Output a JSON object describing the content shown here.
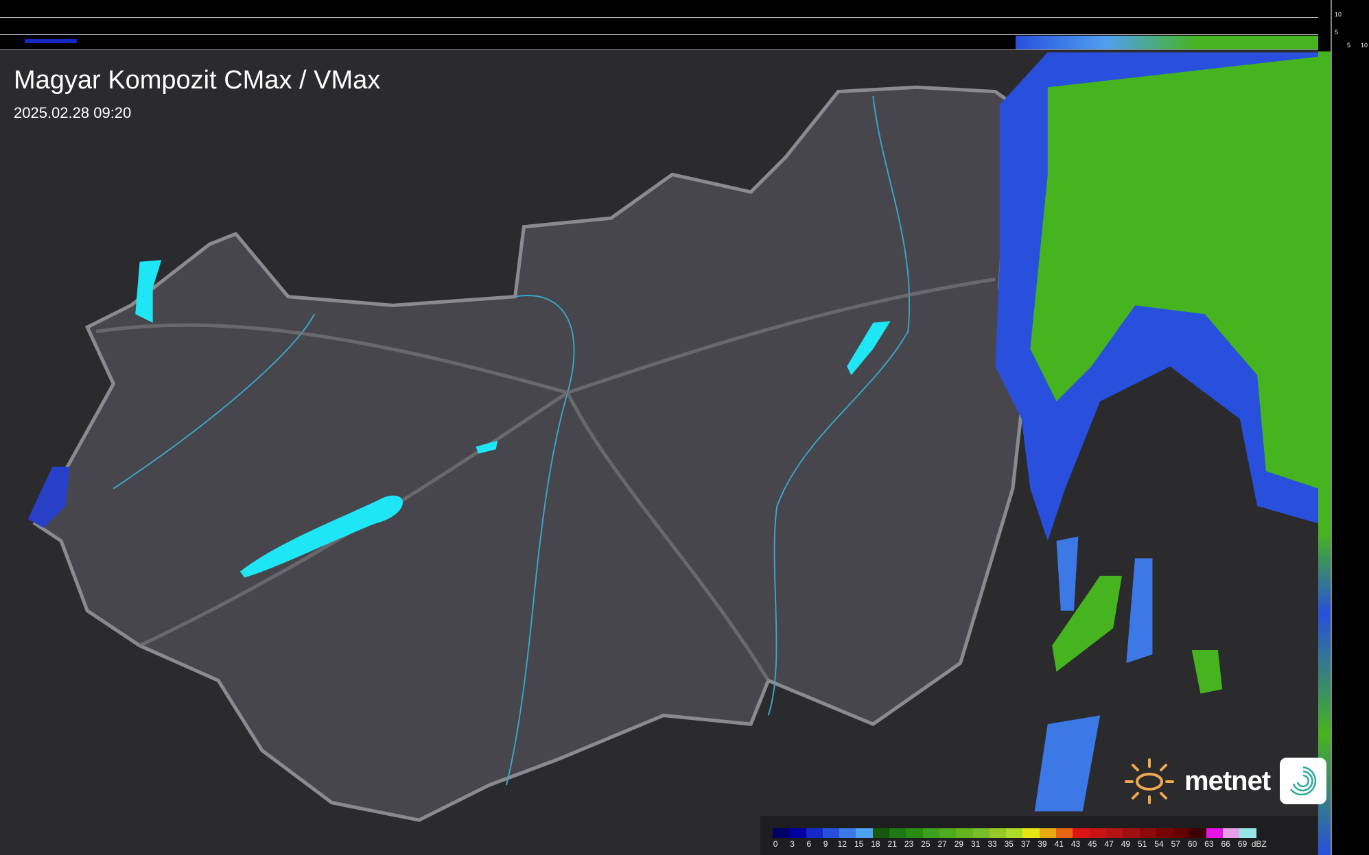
{
  "header": {
    "title": "Magyar Kompozit CMax / VMax",
    "timestamp": "2025.02.28 09:20"
  },
  "profile_axes": {
    "vertical_ticks": [
      "10",
      "5"
    ],
    "horizontal_ticks": [
      "5",
      "10"
    ]
  },
  "legend": {
    "unit": "dBZ",
    "labels": [
      "0",
      "3",
      "6",
      "9",
      "12",
      "15",
      "18",
      "21",
      "23",
      "25",
      "27",
      "29",
      "31",
      "33",
      "35",
      "37",
      "39",
      "41",
      "43",
      "45",
      "47",
      "49",
      "51",
      "54",
      "57",
      "60",
      "63",
      "66",
      "69"
    ],
    "colors": [
      "#000066",
      "#0000a0",
      "#1428c8",
      "#2850dc",
      "#3c78e6",
      "#50a0f0",
      "#145a0a",
      "#1e7814",
      "#288c14",
      "#3ca01e",
      "#50aa1e",
      "#64b41e",
      "#78be28",
      "#96c828",
      "#aadc28",
      "#e6e614",
      "#e6aa14",
      "#e66414",
      "#dc1414",
      "#c81414",
      "#b41414",
      "#a01010",
      "#8c0a0a",
      "#780505",
      "#640000",
      "#3c0000",
      "#e614e6",
      "#e6a0e6",
      "#96e6e6"
    ]
  },
  "logo": {
    "brand": "metnet"
  },
  "colors": {
    "background": "#2b2b2e",
    "country": "#4a4a50",
    "border": "#8a8a8f",
    "rivers": "#3aa8c8",
    "lakes": "#1ee6f5",
    "radar_green": "#46b41e",
    "radar_blue": "#2850dc"
  }
}
